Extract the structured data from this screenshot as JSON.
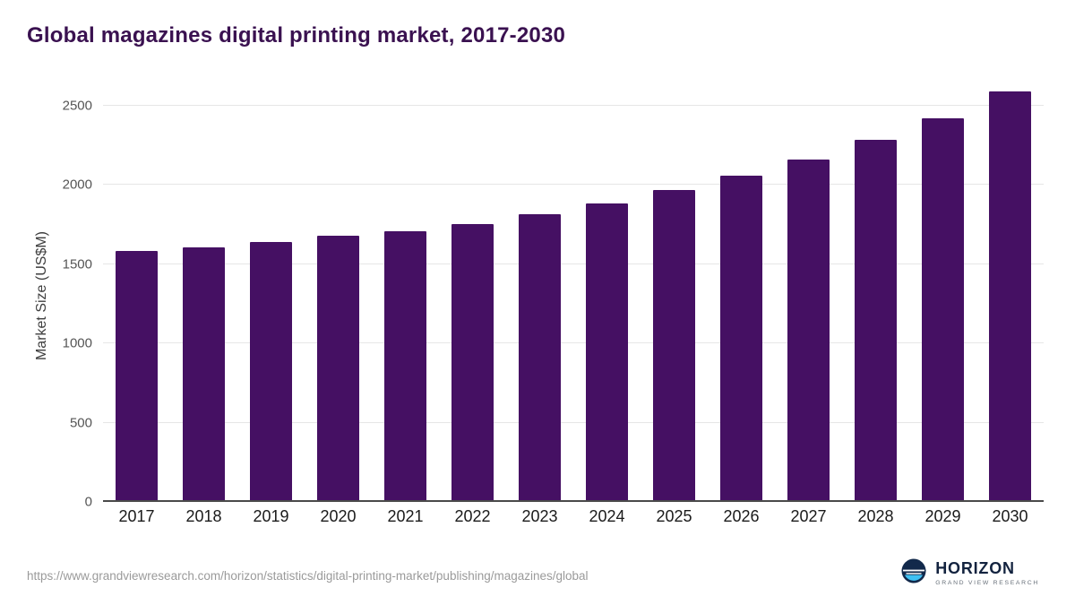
{
  "title": "Global magazines digital printing market, 2017-2030",
  "chart_data": {
    "type": "bar",
    "title": "Global magazines digital printing market, 2017-2030",
    "xlabel": "",
    "ylabel": "Market Size (US$M)",
    "categories": [
      "2017",
      "2018",
      "2019",
      "2020",
      "2021",
      "2022",
      "2023",
      "2024",
      "2025",
      "2026",
      "2027",
      "2028",
      "2029",
      "2030"
    ],
    "values": [
      1580,
      1605,
      1640,
      1680,
      1705,
      1755,
      1815,
      1885,
      1965,
      2055,
      2160,
      2285,
      2420,
      2590
    ],
    "yticks": [
      0,
      500,
      1000,
      1500,
      2000,
      2500
    ],
    "ylim": [
      0,
      2600
    ],
    "grid": true,
    "legend": false,
    "bar_color": "#451063"
  },
  "footer": {
    "source_url": "https://www.grandviewresearch.com/horizon/statistics/digital-printing-market/publishing/magazines/global",
    "logo": {
      "name": "HORIZON",
      "subtitle": "GRAND VIEW RESEARCH"
    }
  },
  "colors": {
    "title": "#3a1150",
    "bar": "#451063",
    "axis": "#4a4a4a",
    "gridline": "#e6e6e6"
  }
}
